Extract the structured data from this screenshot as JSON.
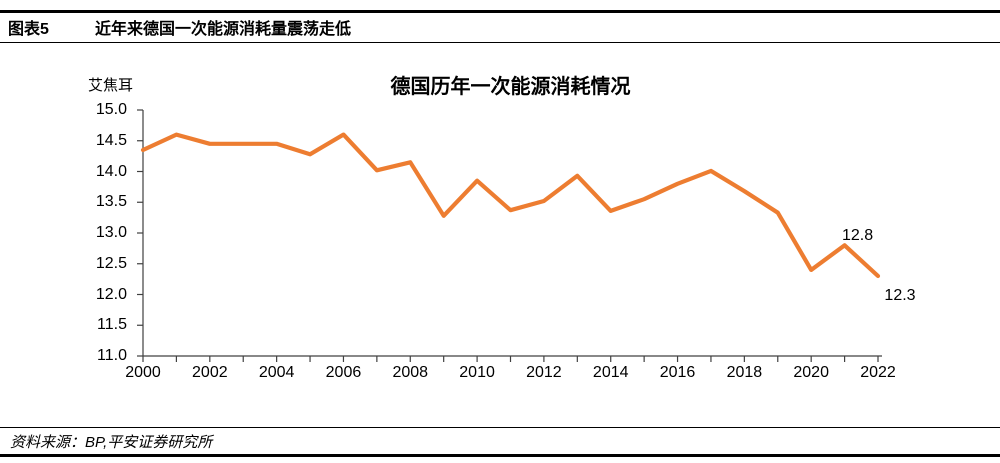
{
  "header": {
    "label": "图表5",
    "title": "近年来德国一次能源消耗量震荡走低"
  },
  "footer": {
    "source": "资料来源：BP,平安证券研究所"
  },
  "colors": {
    "line": "#ED7D31",
    "axis": "#404040",
    "text": "#000000"
  },
  "chart_data": {
    "type": "line",
    "title": "德国历年一次能源消耗情况",
    "unit_label": "艾焦耳",
    "x": [
      2000,
      2001,
      2002,
      2003,
      2004,
      2005,
      2006,
      2007,
      2008,
      2009,
      2010,
      2011,
      2012,
      2013,
      2014,
      2015,
      2016,
      2017,
      2018,
      2019,
      2020,
      2021,
      2022
    ],
    "values": [
      14.35,
      14.6,
      14.45,
      14.45,
      14.45,
      14.28,
      14.6,
      14.02,
      14.15,
      13.28,
      13.85,
      13.37,
      13.52,
      13.93,
      13.36,
      13.55,
      13.8,
      14.01,
      13.68,
      13.33,
      12.4,
      12.8,
      12.3
    ],
    "ylim": [
      11.0,
      15.0
    ],
    "ytick_step": 0.5,
    "ytick_labels": [
      "15.0",
      "14.5",
      "14.0",
      "13.5",
      "13.0",
      "12.5",
      "12.0",
      "11.5",
      "11.0"
    ],
    "xtick_labels": [
      "2000",
      "2002",
      "2004",
      "2006",
      "2008",
      "2010",
      "2012",
      "2014",
      "2016",
      "2018",
      "2020",
      "2022"
    ],
    "grid": false,
    "legend_position": "none",
    "annotations": [
      {
        "x": 2021,
        "text": "12.8",
        "placement": "above"
      },
      {
        "x": 2022,
        "text": "12.3",
        "placement": "below-right"
      }
    ]
  }
}
